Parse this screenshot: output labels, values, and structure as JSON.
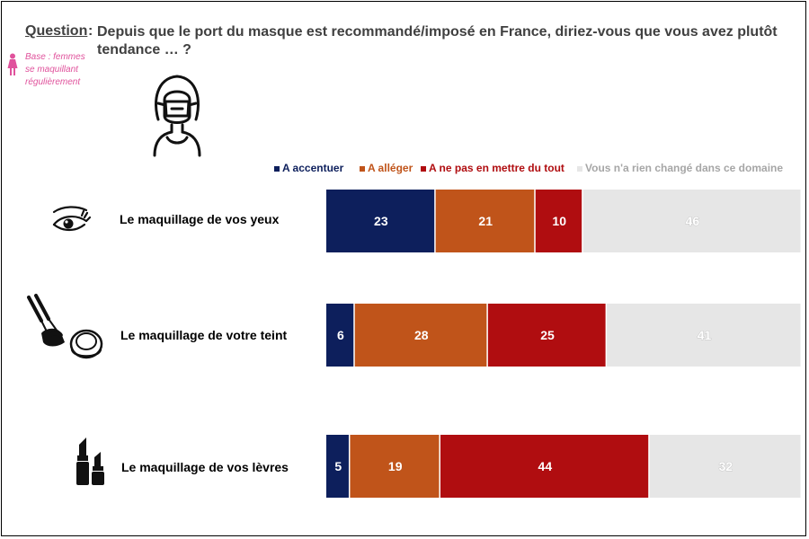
{
  "question": {
    "label": "Question",
    "colon": ":",
    "text": "Depuis que le port du masque est recommandé/imposé en France, diriez-vous que vous avez plutôt tendance … ?"
  },
  "base": {
    "text": "Base : femmes se maquillant régulièrement"
  },
  "colors": {
    "accentuer": "#0d1f5c",
    "alleger": "#c0541a",
    "ne_pas_mettre": "#b00d10",
    "rien_change": "#e6e6e6",
    "base_pink": "#e0529c"
  },
  "icons": {
    "base": "woman-figure-icon",
    "header": "woman-with-mask-icon",
    "row_1": "eye-makeup-icon",
    "row_2": "brush-and-compact-icon",
    "row_3": "lipstick-icon"
  },
  "chart_data": {
    "type": "bar",
    "orientation": "horizontal",
    "stacked": true,
    "percent_scale": [
      0,
      100
    ],
    "legend_position": "top-right",
    "grid": false,
    "categories": [
      "Le maquillage de vos yeux",
      "Le maquillage de votre teint",
      "Le maquillage de vos lèvres"
    ],
    "series": [
      {
        "name": "A accentuer",
        "color": "#0d1f5c",
        "values": [
          23,
          6,
          5
        ]
      },
      {
        "name": "A alléger",
        "color": "#c0541a",
        "values": [
          21,
          28,
          19
        ]
      },
      {
        "name": "A ne pas en mettre du tout",
        "color": "#b00d10",
        "values": [
          10,
          25,
          44
        ]
      },
      {
        "name": "Vous n'a rien changé dans ce domaine",
        "color": "#e6e6e6",
        "values": [
          46,
          41,
          32
        ]
      }
    ]
  }
}
